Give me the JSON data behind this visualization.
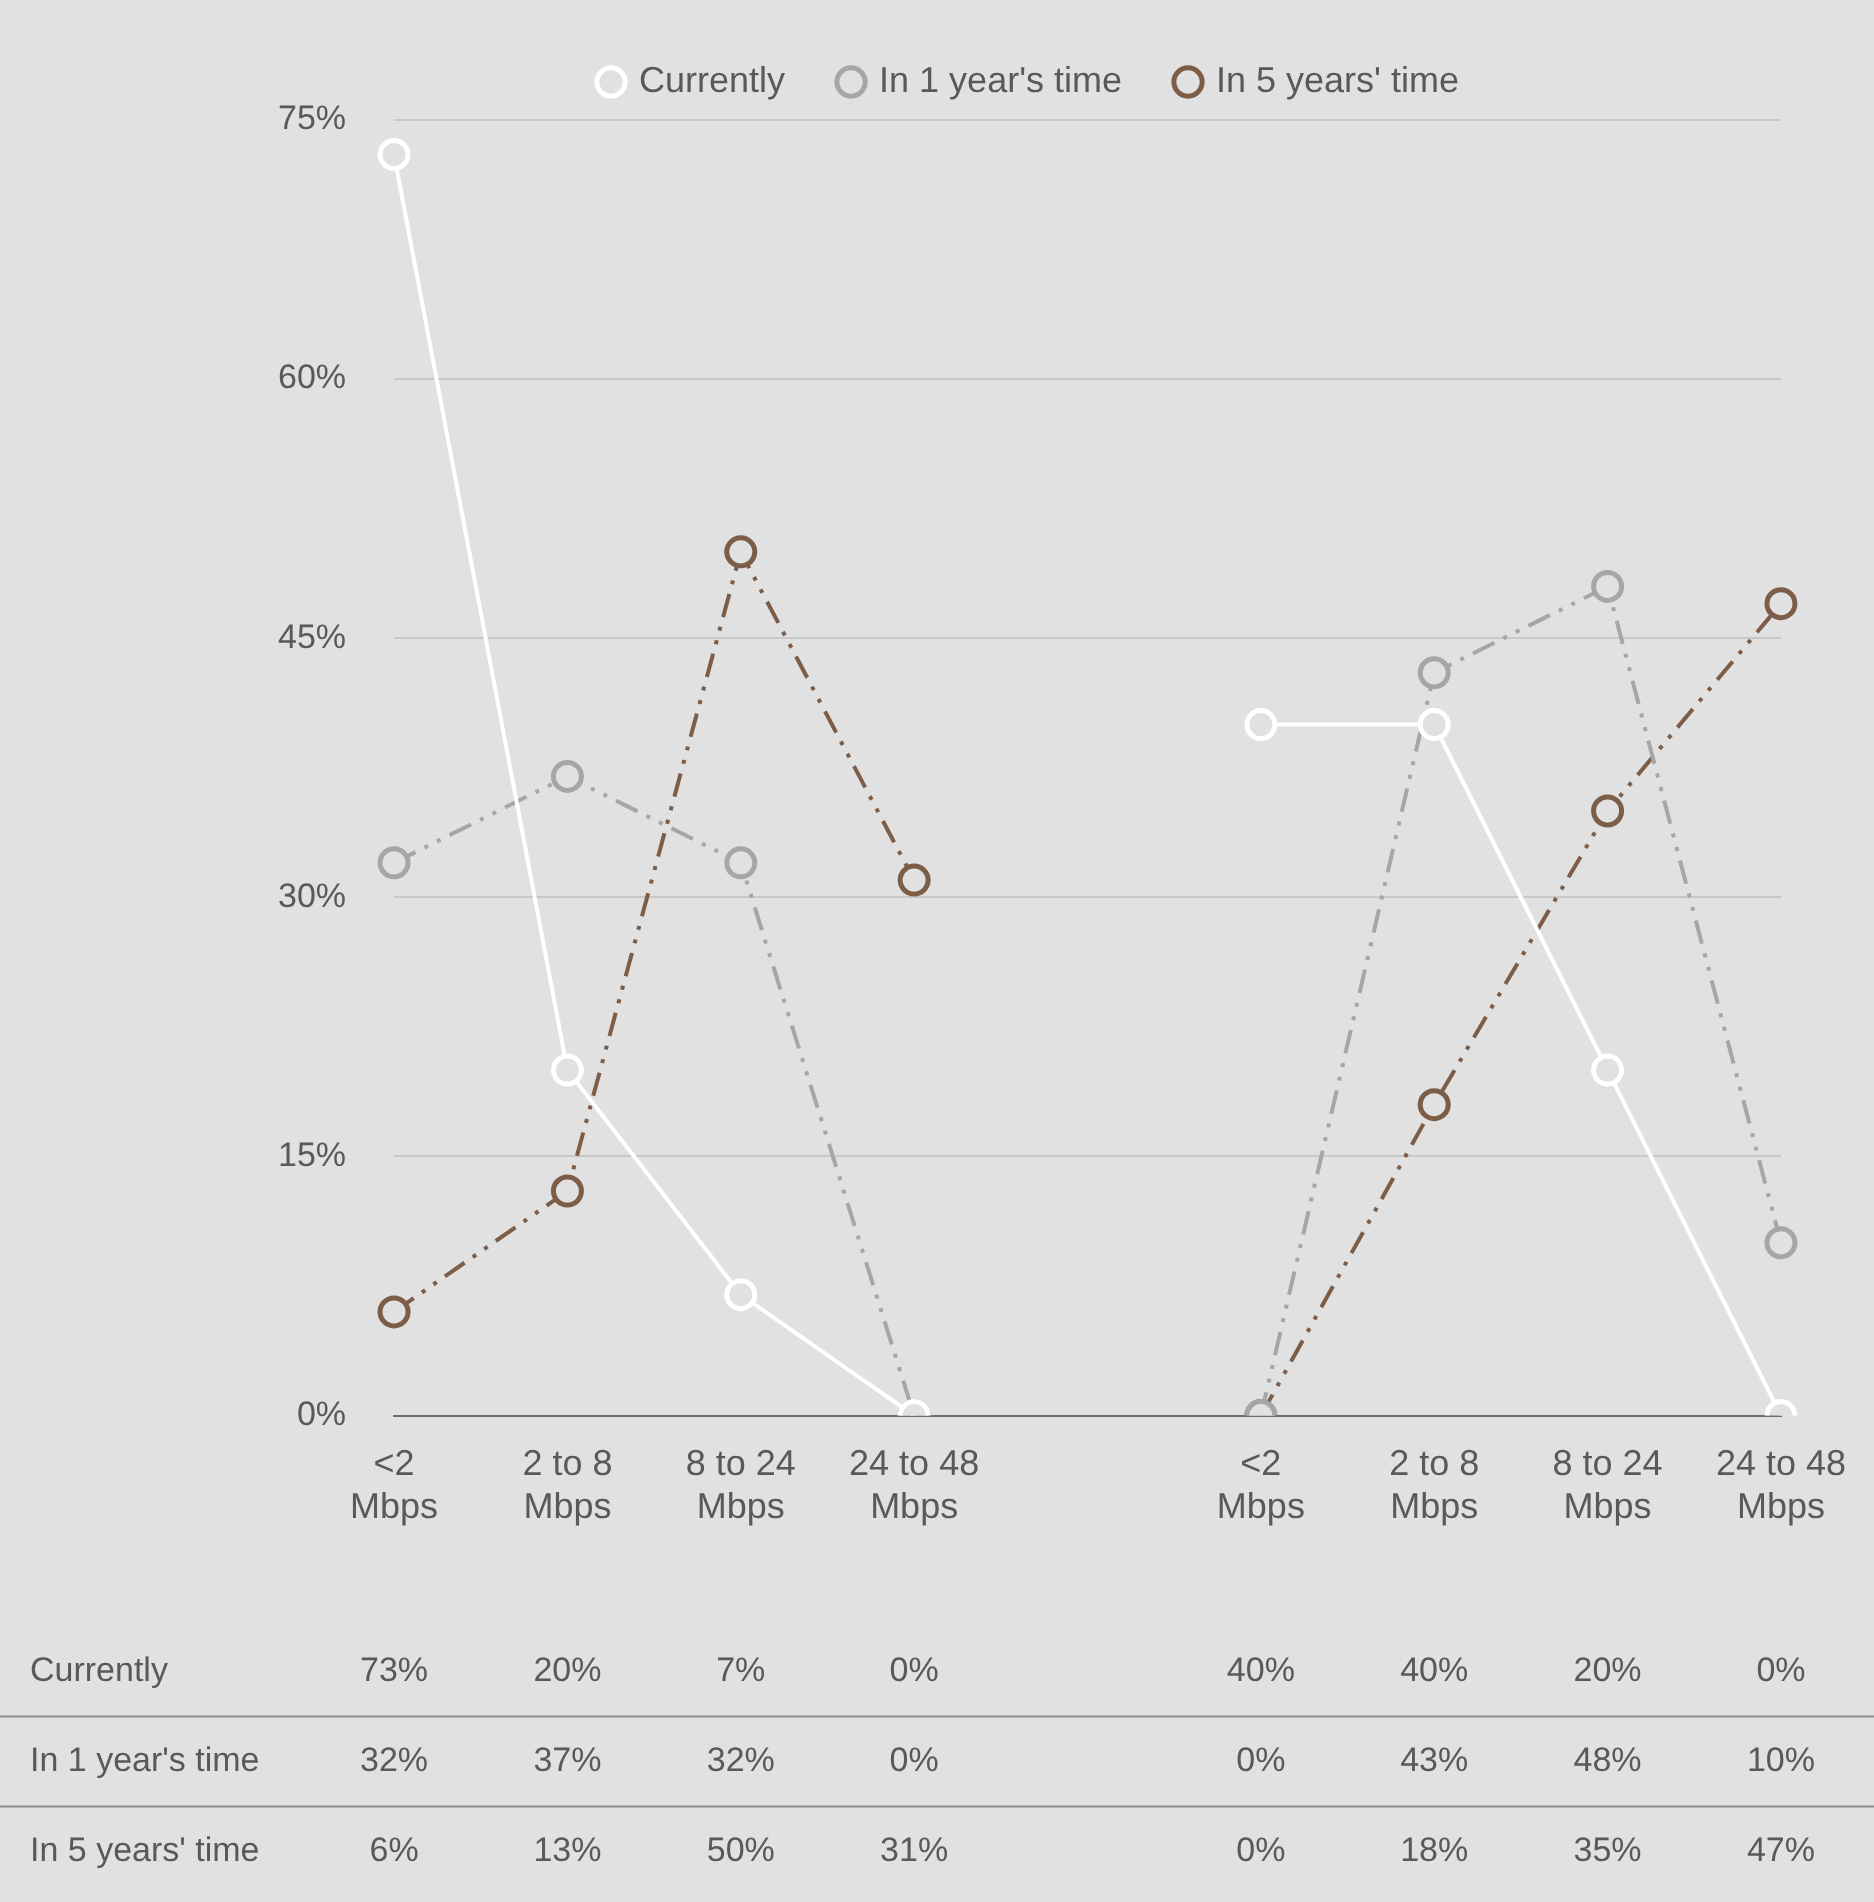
{
  "chart_data": {
    "type": "line",
    "categories": [
      "<2 Mbps",
      "2 to 8 Mbps",
      "8 to 24 Mbps",
      "24 to 48 Mbps",
      null,
      "<2 Mbps",
      "2 to 8 Mbps",
      "8 to 24 Mbps",
      "24 to 48 Mbps"
    ],
    "series": [
      {
        "name": "Currently",
        "color": "#ffffff",
        "line_style": "solid",
        "values": [
          73,
          20,
          7,
          0,
          null,
          40,
          40,
          20,
          0
        ],
        "value_labels": [
          "73%",
          "20%",
          "7%",
          "0%",
          null,
          "40%",
          "40%",
          "20%",
          "0%"
        ]
      },
      {
        "name": "In 1 year's time",
        "color": "#a6a6a6",
        "line_style": "dashed",
        "values": [
          32,
          37,
          32,
          0,
          null,
          0,
          43,
          48,
          10
        ],
        "value_labels": [
          "32%",
          "37%",
          "32%",
          "0%",
          null,
          "0%",
          "43%",
          "48%",
          "10%"
        ]
      },
      {
        "name": "In 5 years' time",
        "color": "#7b5d48",
        "line_style": "dashed",
        "values": [
          6,
          13,
          50,
          31,
          null,
          0,
          18,
          35,
          47
        ],
        "value_labels": [
          "6%",
          "13%",
          "50%",
          "31%",
          null,
          "0%",
          "18%",
          "35%",
          "47%"
        ]
      }
    ],
    "ylim": [
      0,
      75
    ],
    "yticks": [
      {
        "value": 0,
        "label": "0%"
      },
      {
        "value": 15,
        "label": "15%"
      },
      {
        "value": 30,
        "label": "30%"
      },
      {
        "value": 45,
        "label": "45%"
      },
      {
        "value": 60,
        "label": "60%"
      },
      {
        "value": 75,
        "label": "75%"
      }
    ],
    "grid": "y",
    "legend": "top",
    "marker": "circle"
  }
}
